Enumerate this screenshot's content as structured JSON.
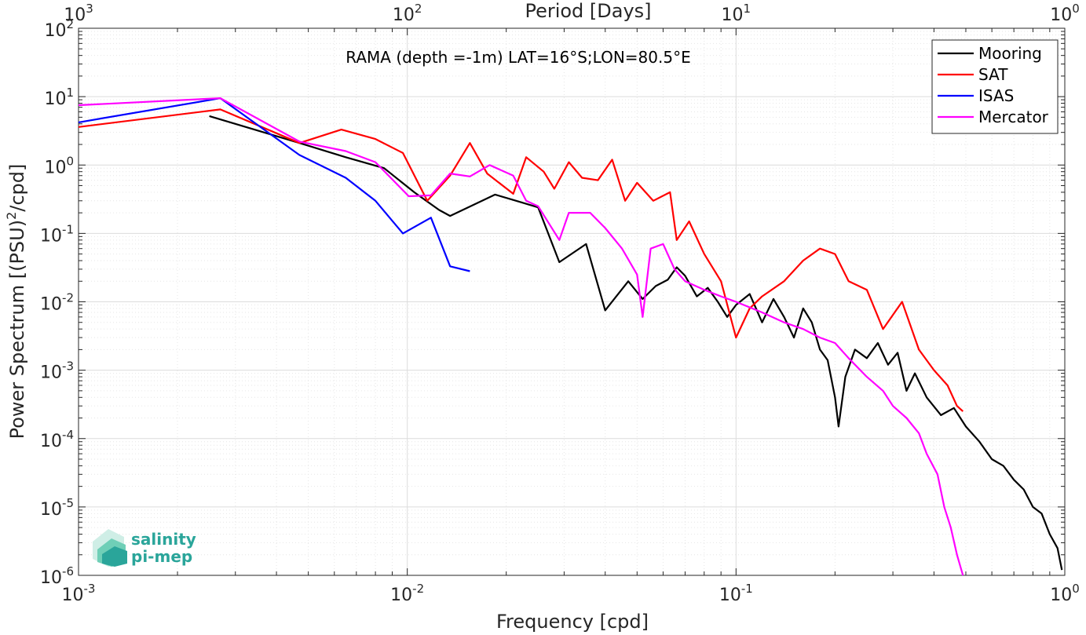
{
  "chart_data": {
    "type": "line",
    "title": "RAMA (depth =-1m) LAT=16°S;LON=80.5°E",
    "xlabel": "Frequency [cpd]",
    "ylabel_parts": {
      "main": "Power Spectrum [(PSU)",
      "sup": "2",
      "tail": "/cpd]"
    },
    "top_xlabel": "Period [Days]",
    "xscale": "log",
    "yscale": "log",
    "xlim": [
      0.001,
      1
    ],
    "ylim": [
      1e-06,
      100
    ],
    "grid": true,
    "legend_position": "top-right",
    "x_ticks": [
      {
        "base": "10",
        "exp": "-3"
      },
      {
        "base": "10",
        "exp": "-2"
      },
      {
        "base": "10",
        "exp": "-1"
      },
      {
        "base": "10",
        "exp": "0"
      }
    ],
    "top_ticks": [
      {
        "base": "10",
        "exp": "3"
      },
      {
        "base": "10",
        "exp": "2"
      },
      {
        "base": "10",
        "exp": "1"
      },
      {
        "base": "10",
        "exp": "0"
      }
    ],
    "y_ticks": [
      {
        "base": "10",
        "exp": "-6"
      },
      {
        "base": "10",
        "exp": "-5"
      },
      {
        "base": "10",
        "exp": "-4"
      },
      {
        "base": "10",
        "exp": "-3"
      },
      {
        "base": "10",
        "exp": "-2"
      },
      {
        "base": "10",
        "exp": "-1"
      },
      {
        "base": "10",
        "exp": "0"
      },
      {
        "base": "10",
        "exp": "1"
      },
      {
        "base": "10",
        "exp": "2"
      }
    ],
    "series": [
      {
        "name": "Mooring",
        "color": "#000000",
        "points": [
          [
            0.0025,
            5.2
          ],
          [
            0.0047,
            2.1
          ],
          [
            0.0065,
            1.3
          ],
          [
            0.0085,
            0.9
          ],
          [
            0.0105,
            0.4
          ],
          [
            0.0125,
            0.22
          ],
          [
            0.0135,
            0.18
          ],
          [
            0.0185,
            0.37
          ],
          [
            0.0225,
            0.28
          ],
          [
            0.025,
            0.24
          ],
          [
            0.029,
            0.038
          ],
          [
            0.035,
            0.07
          ],
          [
            0.04,
            0.0075
          ],
          [
            0.047,
            0.02
          ],
          [
            0.052,
            0.011
          ],
          [
            0.057,
            0.017
          ],
          [
            0.062,
            0.021
          ],
          [
            0.066,
            0.032
          ],
          [
            0.07,
            0.024
          ],
          [
            0.076,
            0.012
          ],
          [
            0.082,
            0.016
          ],
          [
            0.088,
            0.01
          ],
          [
            0.094,
            0.006
          ],
          [
            0.1,
            0.009
          ],
          [
            0.11,
            0.013
          ],
          [
            0.12,
            0.005
          ],
          [
            0.13,
            0.011
          ],
          [
            0.14,
            0.006
          ],
          [
            0.15,
            0.003
          ],
          [
            0.16,
            0.008
          ],
          [
            0.17,
            0.005
          ],
          [
            0.18,
            0.002
          ],
          [
            0.19,
            0.0014
          ],
          [
            0.2,
            0.0004
          ],
          [
            0.205,
            0.00015
          ],
          [
            0.215,
            0.0008
          ],
          [
            0.23,
            0.002
          ],
          [
            0.25,
            0.0015
          ],
          [
            0.27,
            0.0025
          ],
          [
            0.29,
            0.0012
          ],
          [
            0.31,
            0.0018
          ],
          [
            0.33,
            0.0005
          ],
          [
            0.35,
            0.0009
          ],
          [
            0.38,
            0.0004
          ],
          [
            0.42,
            0.00022
          ],
          [
            0.46,
            0.00028
          ],
          [
            0.5,
            0.00015
          ],
          [
            0.55,
            9e-05
          ],
          [
            0.6,
            5e-05
          ],
          [
            0.65,
            4e-05
          ],
          [
            0.7,
            2.5e-05
          ],
          [
            0.75,
            1.8e-05
          ],
          [
            0.8,
            1e-05
          ],
          [
            0.85,
            8e-06
          ],
          [
            0.9,
            4e-06
          ],
          [
            0.95,
            2.5e-06
          ],
          [
            0.98,
            1.2e-06
          ]
        ]
      },
      {
        "name": "SAT",
        "color": "#ff0000",
        "points": [
          [
            0.001,
            3.6
          ],
          [
            0.0027,
            6.5
          ],
          [
            0.0047,
            2.1
          ],
          [
            0.0063,
            3.3
          ],
          [
            0.008,
            2.4
          ],
          [
            0.0097,
            1.5
          ],
          [
            0.0115,
            0.3
          ],
          [
            0.0135,
            0.7
          ],
          [
            0.0155,
            2.1
          ],
          [
            0.0175,
            0.75
          ],
          [
            0.021,
            0.38
          ],
          [
            0.023,
            1.3
          ],
          [
            0.026,
            0.8
          ],
          [
            0.028,
            0.45
          ],
          [
            0.031,
            1.1
          ],
          [
            0.034,
            0.65
          ],
          [
            0.038,
            0.6
          ],
          [
            0.042,
            1.2
          ],
          [
            0.046,
            0.3
          ],
          [
            0.05,
            0.55
          ],
          [
            0.056,
            0.3
          ],
          [
            0.063,
            0.4
          ],
          [
            0.066,
            0.08
          ],
          [
            0.072,
            0.15
          ],
          [
            0.08,
            0.05
          ],
          [
            0.09,
            0.02
          ],
          [
            0.1,
            0.003
          ],
          [
            0.11,
            0.008
          ],
          [
            0.12,
            0.012
          ],
          [
            0.14,
            0.02
          ],
          [
            0.16,
            0.04
          ],
          [
            0.18,
            0.06
          ],
          [
            0.2,
            0.05
          ],
          [
            0.22,
            0.02
          ],
          [
            0.25,
            0.015
          ],
          [
            0.28,
            0.004
          ],
          [
            0.32,
            0.01
          ],
          [
            0.36,
            0.002
          ],
          [
            0.4,
            0.001
          ],
          [
            0.44,
            0.0006
          ],
          [
            0.47,
            0.0003
          ],
          [
            0.49,
            0.00025
          ]
        ]
      },
      {
        "name": "ISAS",
        "color": "#0000ff",
        "points": [
          [
            0.001,
            4.2
          ],
          [
            0.0027,
            9.5
          ],
          [
            0.0047,
            1.4
          ],
          [
            0.0065,
            0.65
          ],
          [
            0.008,
            0.3
          ],
          [
            0.0097,
            0.1
          ],
          [
            0.0118,
            0.17
          ],
          [
            0.0135,
            0.033
          ],
          [
            0.0155,
            0.028
          ]
        ]
      },
      {
        "name": "Mercator",
        "color": "#ff00ff",
        "points": [
          [
            0.001,
            7.5
          ],
          [
            0.0027,
            9.5
          ],
          [
            0.0047,
            2.2
          ],
          [
            0.0065,
            1.6
          ],
          [
            0.008,
            1.1
          ],
          [
            0.0101,
            0.35
          ],
          [
            0.0118,
            0.36
          ],
          [
            0.0135,
            0.75
          ],
          [
            0.0155,
            0.68
          ],
          [
            0.0178,
            1.0
          ],
          [
            0.021,
            0.7
          ],
          [
            0.023,
            0.3
          ],
          [
            0.025,
            0.25
          ],
          [
            0.029,
            0.08
          ],
          [
            0.031,
            0.2
          ],
          [
            0.036,
            0.2
          ],
          [
            0.04,
            0.12
          ],
          [
            0.045,
            0.06
          ],
          [
            0.05,
            0.025
          ],
          [
            0.052,
            0.006
          ],
          [
            0.055,
            0.06
          ],
          [
            0.06,
            0.07
          ],
          [
            0.065,
            0.03
          ],
          [
            0.07,
            0.02
          ],
          [
            0.08,
            0.015
          ],
          [
            0.09,
            0.012
          ],
          [
            0.1,
            0.01
          ],
          [
            0.12,
            0.007
          ],
          [
            0.14,
            0.005
          ],
          [
            0.16,
            0.004
          ],
          [
            0.18,
            0.003
          ],
          [
            0.2,
            0.0025
          ],
          [
            0.22,
            0.0015
          ],
          [
            0.25,
            0.0008
          ],
          [
            0.28,
            0.0005
          ],
          [
            0.3,
            0.0003
          ],
          [
            0.33,
            0.0002
          ],
          [
            0.36,
            0.00012
          ],
          [
            0.38,
            6e-05
          ],
          [
            0.41,
            3e-05
          ],
          [
            0.43,
            1e-05
          ],
          [
            0.45,
            5e-06
          ],
          [
            0.47,
            2e-06
          ],
          [
            0.49,
            1e-06
          ]
        ]
      }
    ]
  },
  "logo": {
    "line1": "salinity",
    "line2": "pi-mep"
  }
}
